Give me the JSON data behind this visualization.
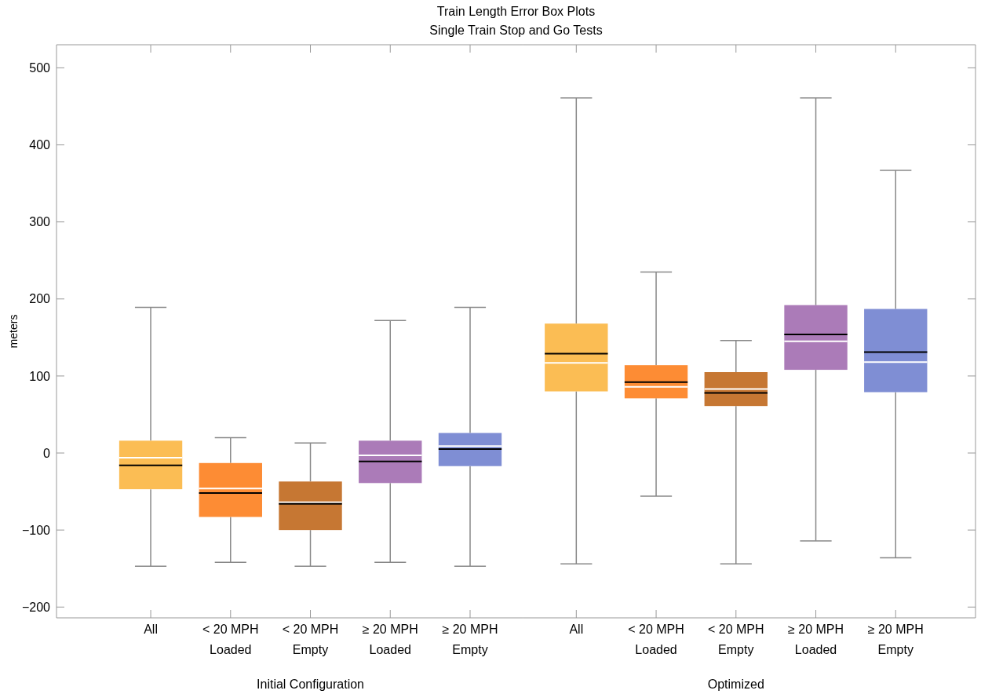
{
  "chart_data": [
    {
      "type": "box",
      "title": "Train Length Error Box Plots",
      "subtitle": "Single Train Stop and Go Tests",
      "ylabel": "meters",
      "xlabel": "Initial Configuration",
      "categories": [
        "All",
        "< 20 MPH\nLoaded",
        "< 20 MPH\nEmpty",
        "≥ 20 MPH\nLoaded",
        "≥ 20 MPH\nEmpty"
      ],
      "colors": [
        "#fbbd54",
        "#fd8c34",
        "#c67733",
        "#ab7bb8",
        "#7f8ed4"
      ],
      "boxes": [
        {
          "low": -147,
          "q1": -47,
          "median": -6,
          "q3": 16,
          "high": 189,
          "mean": -16
        },
        {
          "low": -142,
          "q1": -83,
          "median": -46,
          "q3": -13,
          "high": 20,
          "mean": -52
        },
        {
          "low": -147,
          "q1": -100,
          "median": -64,
          "q3": -37,
          "high": 13,
          "mean": -66
        },
        {
          "low": -142,
          "q1": -39,
          "median": -3,
          "q3": 16,
          "high": 172,
          "mean": -11
        },
        {
          "low": -147,
          "q1": -17,
          "median": 9,
          "q3": 26,
          "high": 189,
          "mean": 5
        }
      ],
      "ylim": [
        -214,
        530
      ],
      "yticks": [
        -200,
        -100,
        0,
        100,
        200,
        300,
        400,
        500
      ]
    },
    {
      "type": "box",
      "xlabel": "Optimized",
      "categories": [
        "All",
        "< 20 MPH\nLoaded",
        "< 20 MPH\nEmpty",
        "≥ 20 MPH\nLoaded",
        "≥ 20 MPH\nEmpty"
      ],
      "colors": [
        "#fbbd54",
        "#fd8c34",
        "#c67733",
        "#ab7bb8",
        "#7f8ed4"
      ],
      "boxes": [
        {
          "low": -144,
          "q1": 80,
          "median": 117,
          "q3": 168,
          "high": 461,
          "mean": 129
        },
        {
          "low": -56,
          "q1": 71,
          "median": 86,
          "q3": 114,
          "high": 235,
          "mean": 92
        },
        {
          "low": -144,
          "q1": 61,
          "median": 83,
          "q3": 105,
          "high": 146,
          "mean": 78
        },
        {
          "low": -114,
          "q1": 108,
          "median": 145,
          "q3": 192,
          "high": 461,
          "mean": 154
        },
        {
          "low": -136,
          "q1": 79,
          "median": 118,
          "q3": 187,
          "high": 367,
          "mean": 131
        }
      ],
      "ylim": [
        -214,
        530
      ],
      "yticks": [
        -200,
        -100,
        0,
        100,
        200,
        300,
        400,
        500
      ],
      "tick_labels": "x"
    }
  ]
}
